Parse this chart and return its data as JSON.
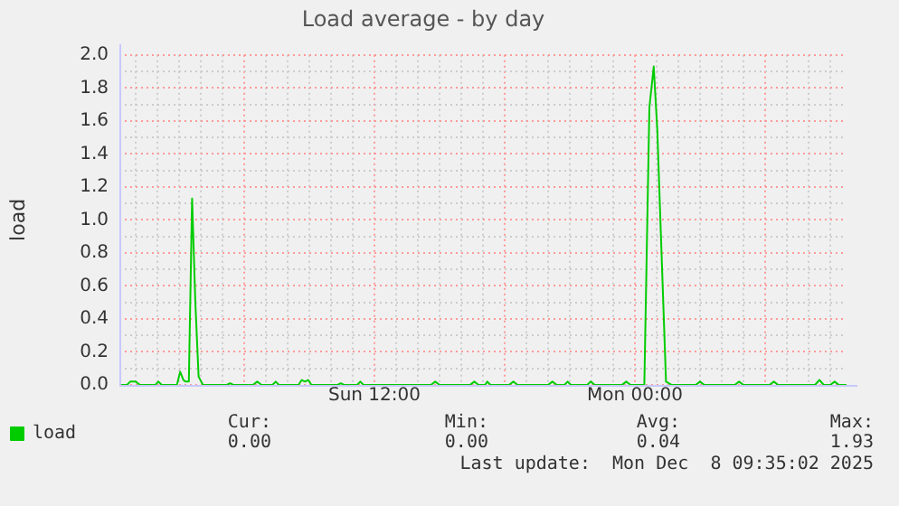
{
  "chart_data": {
    "type": "line",
    "title": "Load average - by day",
    "ylabel": "load",
    "x": [
      "2025-12-07T00:15",
      "2025-12-07T00:36",
      "2025-12-07T00:45",
      "2025-12-07T01:00",
      "2025-12-07T01:12",
      "2025-12-07T01:54",
      "2025-12-07T02:03",
      "2025-12-07T02:12",
      "2025-12-07T02:54",
      "2025-12-07T03:03",
      "2025-12-07T03:12",
      "2025-12-07T03:18",
      "2025-12-07T03:27",
      "2025-12-07T03:36",
      "2025-12-07T03:45",
      "2025-12-07T03:54",
      "2025-12-07T04:06",
      "2025-12-07T05:12",
      "2025-12-07T05:21",
      "2025-12-07T05:30",
      "2025-12-07T06:24",
      "2025-12-07T06:36",
      "2025-12-07T06:48",
      "2025-12-07T07:18",
      "2025-12-07T07:27",
      "2025-12-07T07:36",
      "2025-12-07T08:30",
      "2025-12-07T08:39",
      "2025-12-07T08:48",
      "2025-12-07T08:57",
      "2025-12-07T09:06",
      "2025-12-07T10:18",
      "2025-12-07T10:27",
      "2025-12-07T10:36",
      "2025-12-07T11:12",
      "2025-12-07T11:21",
      "2025-12-07T11:30",
      "2025-12-07T14:36",
      "2025-12-07T14:48",
      "2025-12-07T15:00",
      "2025-12-07T16:24",
      "2025-12-07T16:36",
      "2025-12-07T16:48",
      "2025-12-07T17:06",
      "2025-12-07T17:12",
      "2025-12-07T17:21",
      "2025-12-07T18:12",
      "2025-12-07T18:24",
      "2025-12-07T18:36",
      "2025-12-07T20:00",
      "2025-12-07T20:12",
      "2025-12-07T20:24",
      "2025-12-07T20:45",
      "2025-12-07T20:54",
      "2025-12-07T21:03",
      "2025-12-07T21:48",
      "2025-12-07T21:58",
      "2025-12-07T22:09",
      "2025-12-07T23:24",
      "2025-12-07T23:36",
      "2025-12-07T23:48",
      "2025-12-08T00:24",
      "2025-12-08T00:26",
      "2025-12-08T00:40",
      "2025-12-08T00:52",
      "2025-12-08T01:02",
      "2025-12-08T01:12",
      "2025-12-08T01:26",
      "2025-12-08T01:42",
      "2025-12-08T02:48",
      "2025-12-08T03:00",
      "2025-12-08T03:12",
      "2025-12-08T04:36",
      "2025-12-08T04:48",
      "2025-12-08T05:00",
      "2025-12-08T06:12",
      "2025-12-08T06:24",
      "2025-12-08T06:36",
      "2025-12-08T08:18",
      "2025-12-08T08:30",
      "2025-12-08T08:42",
      "2025-12-08T09:00",
      "2025-12-08T09:12",
      "2025-12-08T09:24",
      "2025-12-08T09:45"
    ],
    "series": [
      {
        "name": "load",
        "color": "#00cc00",
        "values": [
          0.0,
          0.0,
          0.02,
          0.02,
          0.0,
          0.0,
          0.02,
          0.0,
          0.0,
          0.08,
          0.03,
          0.02,
          0.02,
          1.13,
          0.5,
          0.05,
          0.0,
          0.0,
          0.01,
          0.0,
          0.0,
          0.02,
          0.0,
          0.0,
          0.02,
          0.0,
          0.0,
          0.03,
          0.02,
          0.03,
          0.0,
          0.0,
          0.01,
          0.0,
          0.0,
          0.02,
          0.0,
          0.0,
          0.02,
          0.0,
          0.0,
          0.02,
          0.0,
          0.0,
          0.02,
          0.0,
          0.0,
          0.02,
          0.0,
          0.0,
          0.02,
          0.0,
          0.0,
          0.02,
          0.0,
          0.0,
          0.02,
          0.0,
          0.0,
          0.02,
          0.0,
          0.0,
          0.0,
          1.68,
          1.93,
          1.54,
          0.9,
          0.02,
          0.0,
          0.0,
          0.02,
          0.0,
          0.0,
          0.02,
          0.0,
          0.0,
          0.02,
          0.0,
          0.0,
          0.03,
          0.0,
          0.0,
          0.02,
          0.0,
          0.0
        ]
      }
    ],
    "xlim": [
      "2025-12-07T00:15",
      "2025-12-08T09:45"
    ],
    "xticks": [
      {
        "value": "2025-12-07T01:00",
        "label": null
      },
      {
        "value": "2025-12-07T02:00",
        "label": null
      },
      {
        "value": "2025-12-07T03:00",
        "label": null
      },
      {
        "value": "2025-12-07T04:00",
        "label": null
      },
      {
        "value": "2025-12-07T05:00",
        "label": null
      },
      {
        "value": "2025-12-07T06:00",
        "label": null
      },
      {
        "value": "2025-12-07T07:00",
        "label": null
      },
      {
        "value": "2025-12-07T08:00",
        "label": null
      },
      {
        "value": "2025-12-07T09:00",
        "label": null
      },
      {
        "value": "2025-12-07T10:00",
        "label": null
      },
      {
        "value": "2025-12-07T11:00",
        "label": null
      },
      {
        "value": "2025-12-07T12:00",
        "label": "Sun 12:00"
      },
      {
        "value": "2025-12-07T13:00",
        "label": null
      },
      {
        "value": "2025-12-07T14:00",
        "label": null
      },
      {
        "value": "2025-12-07T15:00",
        "label": null
      },
      {
        "value": "2025-12-07T16:00",
        "label": null
      },
      {
        "value": "2025-12-07T17:00",
        "label": null
      },
      {
        "value": "2025-12-07T18:00",
        "label": null
      },
      {
        "value": "2025-12-07T19:00",
        "label": null
      },
      {
        "value": "2025-12-07T20:00",
        "label": null
      },
      {
        "value": "2025-12-07T21:00",
        "label": null
      },
      {
        "value": "2025-12-07T22:00",
        "label": null
      },
      {
        "value": "2025-12-07T23:00",
        "label": null
      },
      {
        "value": "2025-12-08T00:00",
        "label": "Mon 00:00"
      },
      {
        "value": "2025-12-08T01:00",
        "label": null
      },
      {
        "value": "2025-12-08T02:00",
        "label": null
      },
      {
        "value": "2025-12-08T03:00",
        "label": null
      },
      {
        "value": "2025-12-08T04:00",
        "label": null
      },
      {
        "value": "2025-12-08T05:00",
        "label": null
      },
      {
        "value": "2025-12-08T06:00",
        "label": null
      },
      {
        "value": "2025-12-08T07:00",
        "label": null
      },
      {
        "value": "2025-12-08T08:00",
        "label": null
      },
      {
        "value": "2025-12-08T09:00",
        "label": null
      }
    ],
    "ylim": [
      0,
      2.0
    ],
    "yticks": [
      {
        "value": 0,
        "label": "0.0"
      },
      {
        "value": 0.1,
        "label": null
      },
      {
        "value": 0.2,
        "label": "0.2"
      },
      {
        "value": 0.3,
        "label": null
      },
      {
        "value": 0.4,
        "label": "0.4"
      },
      {
        "value": 0.5,
        "label": null
      },
      {
        "value": 0.6,
        "label": "0.6"
      },
      {
        "value": 0.7,
        "label": null
      },
      {
        "value": 0.8,
        "label": "0.8"
      },
      {
        "value": 0.9,
        "label": null
      },
      {
        "value": 1.0,
        "label": "1.0"
      },
      {
        "value": 1.1,
        "label": null
      },
      {
        "value": 1.2,
        "label": "1.2"
      },
      {
        "value": 1.3,
        "label": null
      },
      {
        "value": 1.4,
        "label": "1.4"
      },
      {
        "value": 1.5,
        "label": null
      },
      {
        "value": 1.6,
        "label": "1.6"
      },
      {
        "value": 1.7,
        "label": null
      },
      {
        "value": 1.8,
        "label": "1.8"
      },
      {
        "value": 1.9,
        "label": null
      },
      {
        "value": 2.0,
        "label": "2.0"
      }
    ],
    "grid": true,
    "legend": "bottom left",
    "marker": "none",
    "line_style": "solid",
    "annotations": [
      "Cur:",
      "0.00",
      "Min:",
      "0.00",
      "Avg:",
      "0.04",
      "Max:",
      "1.93",
      "Last update:  Mon Dec  8 09:35:02 2025"
    ]
  }
}
